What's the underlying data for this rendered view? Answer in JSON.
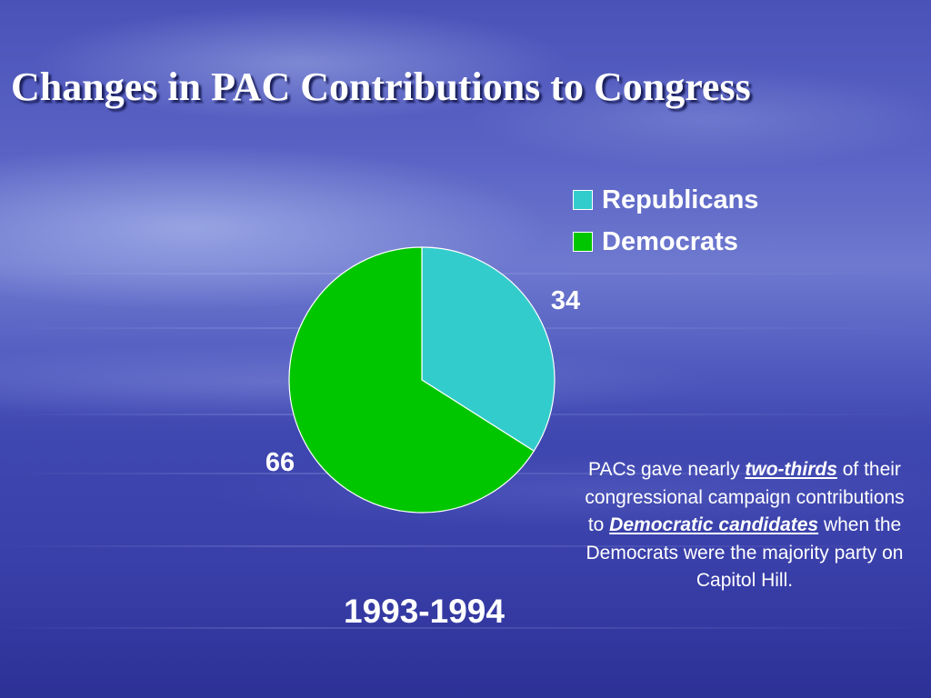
{
  "title": "Changes in PAC Contributions to Congress",
  "chart_data": {
    "type": "pie",
    "categories": [
      "Republicans",
      "Democrats"
    ],
    "values": [
      34,
      66
    ],
    "data_labels": [
      "34",
      "66"
    ],
    "colors": [
      "#33CCCC",
      "#00C600"
    ],
    "legend_position": "top-right",
    "period_label": "1993-1994"
  },
  "note": {
    "part1": "PACs gave nearly ",
    "emph1": "two-thirds",
    "part2": " of their congressional campaign contributions to ",
    "emph2": "Democratic candidates",
    "part3": " when the Democrats were the majority party on Capitol Hill."
  }
}
